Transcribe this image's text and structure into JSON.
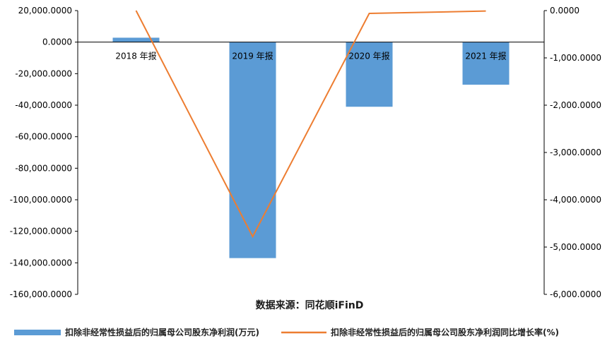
{
  "chart_data": {
    "type": "bar",
    "categories": [
      "2018 年报",
      "2019 年报",
      "2020 年报",
      "2021 年报"
    ],
    "series": [
      {
        "name": "扣除非经常性损益后的归属母公司股东净利润(万元)",
        "type": "bar",
        "axis": "left",
        "values": [
          2800,
          -137000,
          -41000,
          -27000
        ],
        "color": "#5B9BD5"
      },
      {
        "name": "扣除非经常性损益后的归属母公司股东净利润同比增长率(%)",
        "type": "line",
        "axis": "right",
        "values": [
          0,
          -4780,
          -60,
          -10
        ],
        "color": "#ED7D31"
      }
    ],
    "left_axis": {
      "ylim": [
        -160000,
        20000
      ],
      "ticks": [
        "20,000.0000",
        "0.0000",
        "-20,000.0000",
        "-40,000.0000",
        "-60,000.0000",
        "-80,000.0000",
        "-100,000.0000",
        "-120,000.0000",
        "-140,000.0000",
        "-160,000.0000"
      ]
    },
    "right_axis": {
      "ylim": [
        -6000,
        0
      ],
      "ticks": [
        "0.0000",
        "-1,000.0000",
        "-2,000.0000",
        "-3,000.0000",
        "-4,000.0000",
        "-5,000.0000",
        "-6,000.0000"
      ]
    },
    "source_text": "数据来源：同花顺iFinD",
    "grid": false,
    "legend_position": "bottom"
  }
}
